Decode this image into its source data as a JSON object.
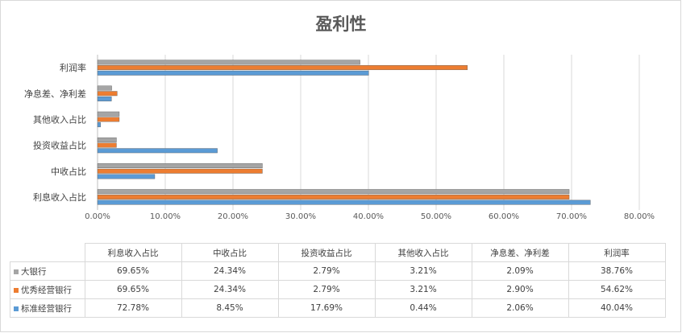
{
  "chart_data": {
    "type": "bar",
    "orientation": "horizontal",
    "title": "盈利性",
    "categories": [
      "利息收入占比",
      "中收占比",
      "投资收益占比",
      "其他收入占比",
      "净息差、净利差",
      "利润率"
    ],
    "series": [
      {
        "name": "大银行",
        "color": "#a5a5a5",
        "values": [
          69.65,
          24.34,
          2.79,
          3.21,
          2.09,
          38.76
        ],
        "labels": [
          "69.65%",
          "24.34%",
          "2.79%",
          "3.21%",
          "2.09%",
          "38.76%"
        ]
      },
      {
        "name": "优秀经营银行",
        "color": "#ed7d31",
        "values": [
          69.65,
          24.34,
          2.79,
          3.21,
          2.9,
          54.62
        ],
        "labels": [
          "69.65%",
          "24.34%",
          "2.79%",
          "3.21%",
          "2.90%",
          "54.62%"
        ]
      },
      {
        "name": "标准经营银行",
        "color": "#5b9bd5",
        "values": [
          72.78,
          8.45,
          17.69,
          0.44,
          2.06,
          40.04
        ],
        "labels": [
          "72.78%",
          "8.45%",
          "17.69%",
          "0.44%",
          "2.06%",
          "40.04%"
        ]
      }
    ],
    "xlim": [
      0,
      80
    ],
    "x_ticks": [
      "0.00%",
      "10.00%",
      "20.00%",
      "30.00%",
      "40.00%",
      "50.00%",
      "60.00%",
      "70.00%",
      "80.00%"
    ],
    "grid": true,
    "legend": "data table below chart"
  },
  "table": {
    "headers": [
      "利息收入占比",
      "中收占比",
      "投资收益占比",
      "其他收入占比",
      "净息差、净利差",
      "利润率"
    ]
  }
}
